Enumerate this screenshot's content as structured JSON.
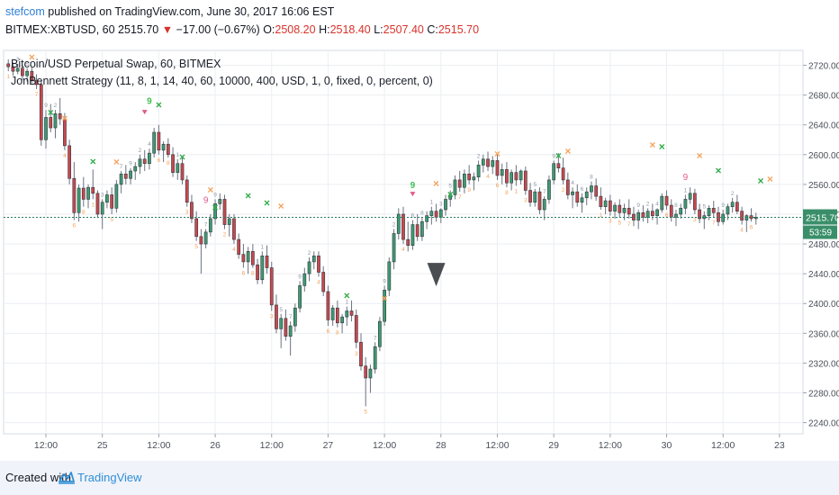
{
  "header": {
    "username": "stefcom",
    "published_text": "published on TradingView.com, June 30, 2017 16:06 EST",
    "symbol_line": "BITMEX:XBTUSD, 60",
    "last_price": "2515.70",
    "change_arrow": "▼",
    "change": "−17.00 (−0.67%)",
    "ohlc": [
      {
        "label": "O:",
        "value": "2508.20"
      },
      {
        "label": "H:",
        "value": "2518.40"
      },
      {
        "label": "L:",
        "value": "2507.40"
      },
      {
        "label": "C:",
        "value": "2515.70"
      }
    ]
  },
  "legend": {
    "instrument": "Bitcoin/USD Perpetual Swap, 60, BITMEX",
    "strategy": "JonBennett Strategy (11, 8, 1, 14, 40, 60, 10000, 400, USD, 1, 0, fixed, 0, percent, 0)"
  },
  "price_tag": {
    "price": "2515.70",
    "countdown": "53:59"
  },
  "footer": {
    "created_with": "Created with",
    "brand": "TradingView"
  },
  "colors": {
    "up": "#53b987",
    "down": "#eb4d5c",
    "upBody": "#3d9b72",
    "downBody": "#c9484f",
    "grid": "#eceef2",
    "priceLine": "#2a7c5e",
    "buyMarker": "#2eab47",
    "sellMarker": "#f5a35c",
    "countNumber": "#f5a35c",
    "countNumberUp": "#8c9aa8"
  },
  "chart_data": {
    "type": "candlestick",
    "title": "Bitcoin/USD Perpetual Swap, 60, BITMEX",
    "ylim": [
      2225,
      2740
    ],
    "y_ticks": [
      2240,
      2280,
      2320,
      2360,
      2400,
      2440,
      2480,
      2520,
      2560,
      2600,
      2640,
      2680,
      2720
    ],
    "x_ticks": [
      "12:00",
      "25",
      "12:00",
      "26",
      "12:00",
      "27",
      "12:00",
      "28",
      "12:00",
      "29",
      "12:00",
      "30",
      "12:00",
      "23"
    ],
    "x_tick_positions": [
      9,
      21,
      33,
      45,
      57,
      69,
      81,
      93,
      105,
      117,
      129,
      141,
      153,
      165
    ],
    "x_range": [
      0,
      170
    ],
    "current_price": 2515.7,
    "grid": true,
    "candles": [
      [
        2722,
        2728,
        2712,
        2718
      ],
      [
        2718,
        2724,
        2706,
        2712
      ],
      [
        2712,
        2722,
        2708,
        2716
      ],
      [
        2716,
        2720,
        2700,
        2706
      ],
      [
        2706,
        2716,
        2698,
        2712
      ],
      [
        2712,
        2718,
        2696,
        2700
      ],
      [
        2700,
        2708,
        2688,
        2694
      ],
      [
        2694,
        2700,
        2612,
        2620
      ],
      [
        2620,
        2660,
        2608,
        2650
      ],
      [
        2650,
        2668,
        2630,
        2636
      ],
      [
        2636,
        2660,
        2622,
        2655
      ],
      [
        2655,
        2676,
        2640,
        2648
      ],
      [
        2648,
        2656,
        2606,
        2612
      ],
      [
        2612,
        2620,
        2560,
        2568
      ],
      [
        2568,
        2590,
        2512,
        2522
      ],
      [
        2522,
        2560,
        2510,
        2555
      ],
      [
        2555,
        2570,
        2530,
        2540
      ],
      [
        2540,
        2560,
        2528,
        2556
      ],
      [
        2556,
        2580,
        2540,
        2548
      ],
      [
        2548,
        2552,
        2515,
        2520
      ],
      [
        2520,
        2540,
        2500,
        2536
      ],
      [
        2536,
        2552,
        2528,
        2546
      ],
      [
        2546,
        2556,
        2520,
        2528
      ],
      [
        2528,
        2566,
        2522,
        2560
      ],
      [
        2560,
        2578,
        2548,
        2574
      ],
      [
        2574,
        2586,
        2560,
        2568
      ],
      [
        2568,
        2582,
        2560,
        2578
      ],
      [
        2578,
        2590,
        2566,
        2584
      ],
      [
        2584,
        2600,
        2574,
        2594
      ],
      [
        2594,
        2606,
        2578,
        2588
      ],
      [
        2588,
        2608,
        2580,
        2602
      ],
      [
        2602,
        2636,
        2596,
        2630
      ],
      [
        2630,
        2640,
        2600,
        2606
      ],
      [
        2606,
        2618,
        2590,
        2614
      ],
      [
        2614,
        2622,
        2596,
        2600
      ],
      [
        2600,
        2610,
        2570,
        2576
      ],
      [
        2576,
        2594,
        2566,
        2588
      ],
      [
        2588,
        2596,
        2560,
        2566
      ],
      [
        2566,
        2572,
        2530,
        2536
      ],
      [
        2536,
        2546,
        2508,
        2514
      ],
      [
        2514,
        2524,
        2484,
        2490
      ],
      [
        2490,
        2500,
        2440,
        2480
      ],
      [
        2480,
        2500,
        2474,
        2496
      ],
      [
        2496,
        2520,
        2490,
        2514
      ],
      [
        2514,
        2540,
        2506,
        2534
      ],
      [
        2534,
        2548,
        2526,
        2540
      ],
      [
        2540,
        2546,
        2500,
        2506
      ],
      [
        2506,
        2520,
        2490,
        2514
      ],
      [
        2514,
        2520,
        2480,
        2486
      ],
      [
        2486,
        2494,
        2460,
        2466
      ],
      [
        2466,
        2480,
        2448,
        2456
      ],
      [
        2456,
        2476,
        2440,
        2470
      ],
      [
        2470,
        2480,
        2448,
        2452
      ],
      [
        2452,
        2460,
        2426,
        2432
      ],
      [
        2432,
        2470,
        2426,
        2464
      ],
      [
        2464,
        2478,
        2440,
        2448
      ],
      [
        2448,
        2456,
        2390,
        2398
      ],
      [
        2398,
        2412,
        2360,
        2366
      ],
      [
        2366,
        2386,
        2340,
        2380
      ],
      [
        2380,
        2392,
        2350,
        2356
      ],
      [
        2356,
        2376,
        2330,
        2370
      ],
      [
        2370,
        2400,
        2362,
        2394
      ],
      [
        2394,
        2430,
        2388,
        2424
      ],
      [
        2424,
        2448,
        2416,
        2440
      ],
      [
        2440,
        2462,
        2430,
        2456
      ],
      [
        2456,
        2470,
        2446,
        2464
      ],
      [
        2464,
        2470,
        2436,
        2442
      ],
      [
        2442,
        2450,
        2410,
        2416
      ],
      [
        2416,
        2424,
        2370,
        2378
      ],
      [
        2378,
        2398,
        2370,
        2394
      ],
      [
        2394,
        2404,
        2368,
        2374
      ],
      [
        2374,
        2386,
        2360,
        2382
      ],
      [
        2382,
        2396,
        2370,
        2390
      ],
      [
        2390,
        2404,
        2376,
        2384
      ],
      [
        2384,
        2392,
        2340,
        2348
      ],
      [
        2348,
        2360,
        2310,
        2316
      ],
      [
        2316,
        2328,
        2262,
        2300
      ],
      [
        2300,
        2318,
        2280,
        2312
      ],
      [
        2312,
        2348,
        2306,
        2342
      ],
      [
        2342,
        2382,
        2336,
        2376
      ],
      [
        2376,
        2424,
        2370,
        2418
      ],
      [
        2418,
        2462,
        2410,
        2456
      ],
      [
        2456,
        2500,
        2446,
        2494
      ],
      [
        2494,
        2528,
        2486,
        2520
      ],
      [
        2520,
        2530,
        2480,
        2486
      ],
      [
        2486,
        2510,
        2470,
        2478
      ],
      [
        2478,
        2512,
        2472,
        2506
      ],
      [
        2506,
        2520,
        2484,
        2490
      ],
      [
        2490,
        2516,
        2484,
        2510
      ],
      [
        2510,
        2524,
        2500,
        2518
      ],
      [
        2518,
        2530,
        2506,
        2524
      ],
      [
        2524,
        2534,
        2510,
        2516
      ],
      [
        2516,
        2528,
        2508,
        2526
      ],
      [
        2526,
        2546,
        2518,
        2540
      ],
      [
        2540,
        2552,
        2530,
        2546
      ],
      [
        2546,
        2572,
        2540,
        2566
      ],
      [
        2566,
        2578,
        2550,
        2556
      ],
      [
        2556,
        2580,
        2548,
        2574
      ],
      [
        2574,
        2586,
        2560,
        2566
      ],
      [
        2566,
        2576,
        2552,
        2570
      ],
      [
        2570,
        2592,
        2564,
        2586
      ],
      [
        2586,
        2600,
        2576,
        2594
      ],
      [
        2594,
        2604,
        2578,
        2584
      ],
      [
        2584,
        2598,
        2574,
        2592
      ],
      [
        2592,
        2600,
        2566,
        2572
      ],
      [
        2572,
        2588,
        2560,
        2580
      ],
      [
        2580,
        2590,
        2556,
        2562
      ],
      [
        2562,
        2580,
        2552,
        2576
      ],
      [
        2576,
        2586,
        2558,
        2566
      ],
      [
        2566,
        2580,
        2560,
        2578
      ],
      [
        2578,
        2584,
        2546,
        2552
      ],
      [
        2552,
        2562,
        2530,
        2536
      ],
      [
        2536,
        2554,
        2530,
        2550
      ],
      [
        2550,
        2556,
        2520,
        2526
      ],
      [
        2526,
        2544,
        2512,
        2540
      ],
      [
        2540,
        2572,
        2534,
        2566
      ],
      [
        2566,
        2592,
        2560,
        2588
      ],
      [
        2588,
        2602,
        2576,
        2582
      ],
      [
        2582,
        2596,
        2560,
        2566
      ],
      [
        2566,
        2576,
        2540,
        2546
      ],
      [
        2546,
        2556,
        2528,
        2550
      ],
      [
        2550,
        2560,
        2530,
        2536
      ],
      [
        2536,
        2548,
        2522,
        2542
      ],
      [
        2542,
        2556,
        2532,
        2550
      ],
      [
        2550,
        2564,
        2540,
        2558
      ],
      [
        2558,
        2568,
        2538,
        2544
      ],
      [
        2544,
        2556,
        2526,
        2530
      ],
      [
        2530,
        2542,
        2520,
        2538
      ],
      [
        2538,
        2546,
        2518,
        2524
      ],
      [
        2524,
        2536,
        2514,
        2532
      ],
      [
        2532,
        2540,
        2516,
        2522
      ],
      [
        2522,
        2534,
        2512,
        2528
      ],
      [
        2528,
        2540,
        2514,
        2520
      ],
      [
        2520,
        2530,
        2504,
        2512
      ],
      [
        2512,
        2526,
        2500,
        2522
      ],
      [
        2522,
        2532,
        2510,
        2516
      ],
      [
        2516,
        2528,
        2508,
        2524
      ],
      [
        2524,
        2534,
        2512,
        2518
      ],
      [
        2518,
        2528,
        2506,
        2526
      ],
      [
        2526,
        2548,
        2522,
        2544
      ],
      [
        2544,
        2552,
        2526,
        2532
      ],
      [
        2532,
        2540,
        2510,
        2516
      ],
      [
        2516,
        2526,
        2504,
        2520
      ],
      [
        2520,
        2534,
        2514,
        2528
      ],
      [
        2528,
        2546,
        2520,
        2540
      ],
      [
        2540,
        2556,
        2534,
        2548
      ],
      [
        2548,
        2554,
        2520,
        2526
      ],
      [
        2526,
        2534,
        2508,
        2514
      ],
      [
        2514,
        2524,
        2500,
        2518
      ],
      [
        2518,
        2532,
        2512,
        2528
      ],
      [
        2528,
        2538,
        2516,
        2522
      ],
      [
        2522,
        2530,
        2504,
        2510
      ],
      [
        2510,
        2526,
        2506,
        2520
      ],
      [
        2520,
        2534,
        2512,
        2530
      ],
      [
        2530,
        2542,
        2522,
        2536
      ],
      [
        2536,
        2546,
        2520,
        2524
      ],
      [
        2524,
        2530,
        2506,
        2512
      ],
      [
        2512,
        2520,
        2496,
        2518
      ],
      [
        2518,
        2528,
        2510,
        2514
      ],
      [
        2514,
        2522,
        2506,
        2516
      ]
    ],
    "buy_markers": [
      [
        10,
        2652
      ],
      [
        19,
        2586
      ],
      [
        33,
        2662
      ],
      [
        38,
        2592
      ],
      [
        45,
        2524
      ],
      [
        52,
        2540
      ],
      [
        56,
        2530
      ],
      [
        73,
        2406
      ],
      [
        95,
        2542
      ],
      [
        118,
        2594
      ],
      [
        140,
        2606
      ],
      [
        152,
        2574
      ],
      [
        161,
        2560
      ]
    ],
    "sell_markers": [
      [
        6,
        2726
      ],
      [
        13,
        2644
      ],
      [
        24,
        2585
      ],
      [
        44,
        2548
      ],
      [
        59,
        2526
      ],
      [
        81,
        2402
      ],
      [
        92,
        2556
      ],
      [
        105,
        2596
      ],
      [
        120,
        2600
      ],
      [
        138,
        2608
      ],
      [
        148,
        2594
      ],
      [
        163,
        2562
      ]
    ],
    "green_nines": [
      [
        31,
        2668
      ],
      [
        87,
        2555
      ]
    ],
    "pink_nines": [
      [
        43,
        2535
      ],
      [
        145,
        2566
      ]
    ],
    "pink_triangles": [
      [
        30,
        2660
      ],
      [
        87,
        2550
      ]
    ],
    "dark_triangle": [
      92,
      2440
    ]
  }
}
